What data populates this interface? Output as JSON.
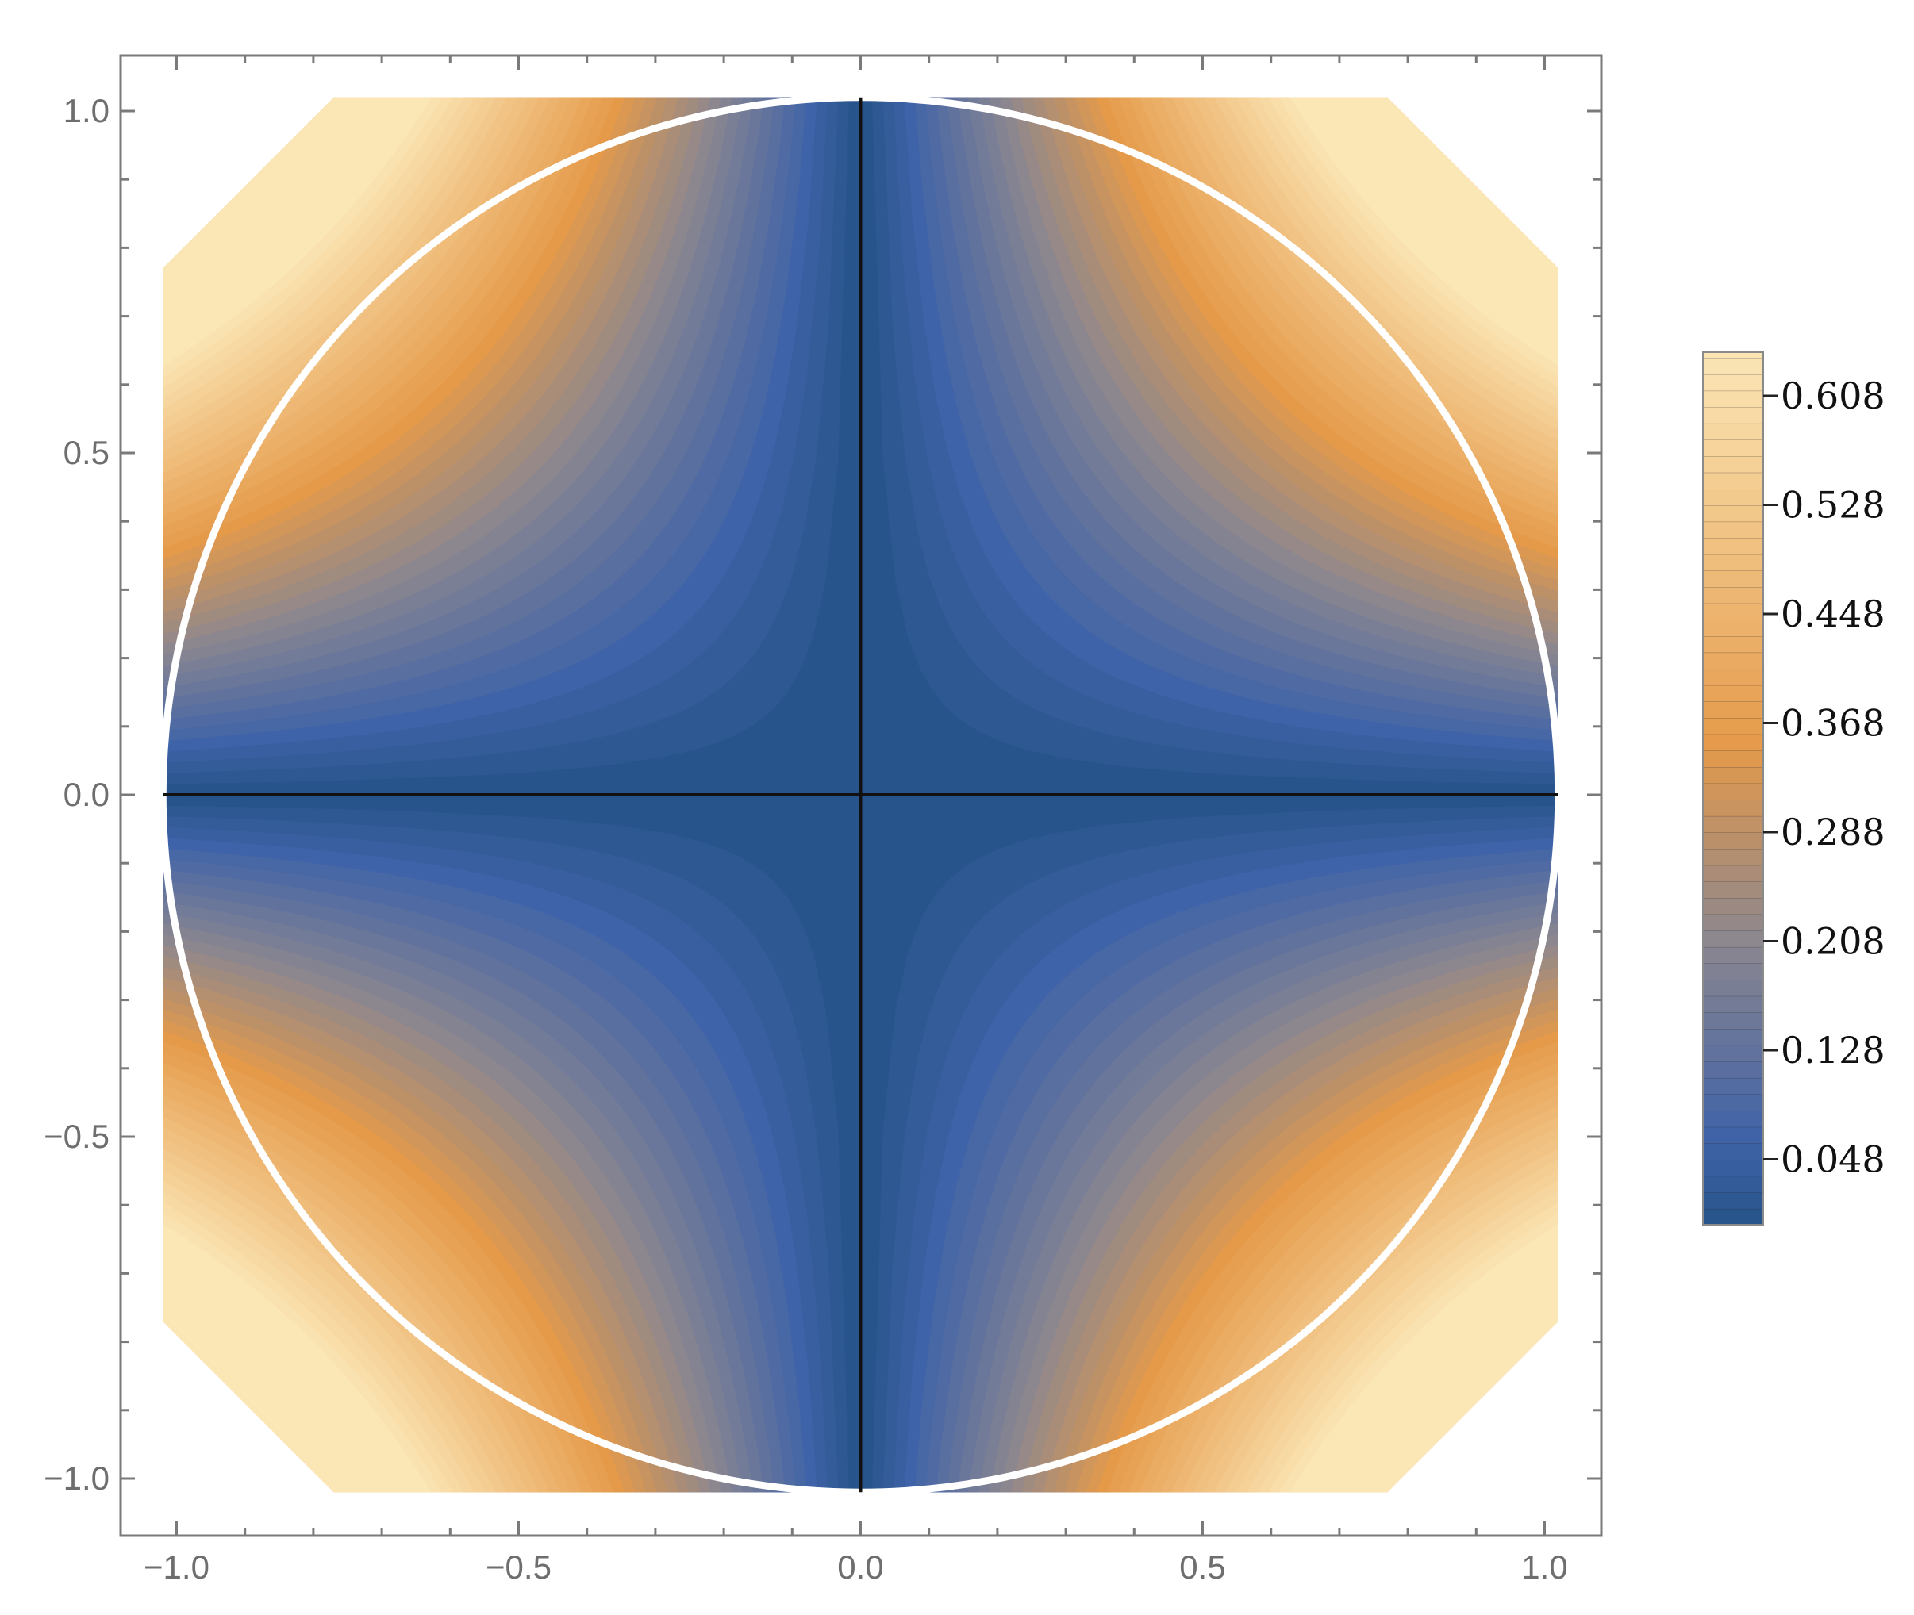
{
  "chart_data": {
    "type": "heatmap",
    "title": "",
    "xlabel": "",
    "ylabel": "",
    "xlim": [
      -1.08,
      1.08
    ],
    "ylim": [
      -1.08,
      1.08
    ],
    "x_ticks": [
      -1.0,
      -0.5,
      0.0,
      0.5,
      1.0
    ],
    "y_ticks": [
      1.0,
      0.5,
      0.0,
      -0.5,
      -1.0
    ],
    "x_tick_labels": [
      "−1.0",
      "−0.5",
      "0.0",
      "0.5",
      "1.0"
    ],
    "y_tick_labels": [
      "1.0",
      "0.5",
      "0.0",
      "−0.5",
      "−1.0"
    ],
    "domain": "square |x|,|y| ≤ 1.02 with corners clipped where |x|+|y| > 1.79",
    "function_description": "contour levels increase from the axes toward the diagonal corners; minimum 0 along the lines x=0 and y=0",
    "overlay": {
      "circle_radius": 1.02,
      "circle_color": "#ffffff",
      "cross_lines": [
        "x = 0",
        "y = 0"
      ],
      "cross_color": "#111111"
    },
    "colorbar": {
      "min": 0.0,
      "max": 0.64,
      "contour_step": 0.008,
      "tick_values": [
        0.048,
        0.128,
        0.208,
        0.288,
        0.368,
        0.448,
        0.528,
        0.608
      ],
      "tick_labels": [
        "0.048",
        "0.128",
        "0.208",
        "0.288",
        "0.368",
        "0.448",
        "0.528",
        "0.608"
      ],
      "position": "right"
    },
    "colors": {
      "low": "#27548a",
      "mid_low": "#3f63a8",
      "mid": "#8a8690",
      "mid_high": "#e59a4a",
      "high": "#fbe6b6"
    },
    "grid": false
  }
}
